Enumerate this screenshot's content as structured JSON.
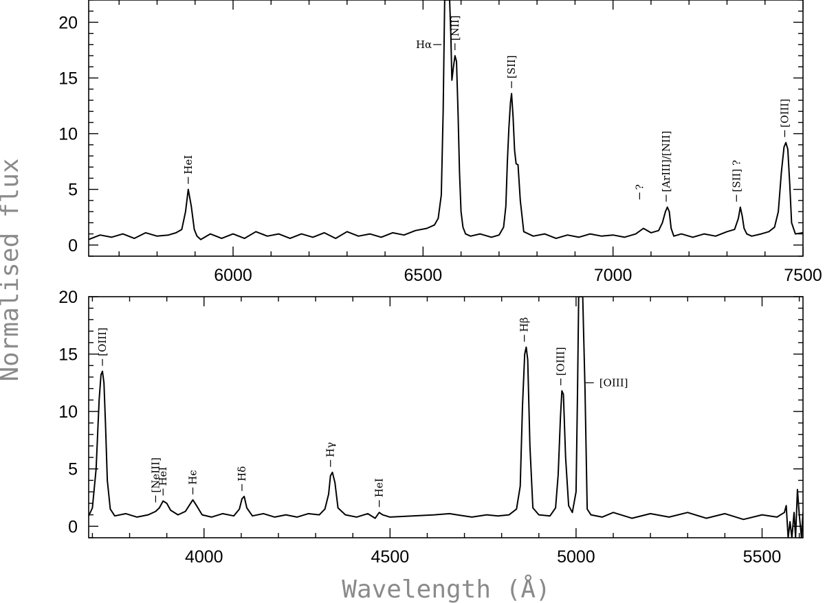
{
  "chart_data": [
    {
      "type": "line",
      "panel": "top",
      "xlabel": "",
      "ylabel": "",
      "xlim": [
        5620,
        7500
      ],
      "ylim": [
        -1,
        22
      ],
      "xticks": [
        6000,
        6500,
        7000,
        7500
      ],
      "yticks": [
        0,
        5,
        10,
        15,
        20
      ],
      "grid": false,
      "series": [
        {
          "x": [
            5620,
            5650,
            5680,
            5710,
            5740,
            5770,
            5800,
            5830,
            5850,
            5865,
            5875,
            5882,
            5890,
            5898,
            5905,
            5915,
            5940,
            5970,
            6000,
            6030,
            6060,
            6090,
            6120,
            6150,
            6180,
            6210,
            6240,
            6270,
            6300,
            6330,
            6360,
            6390,
            6420,
            6450,
            6480,
            6510,
            6530,
            6540,
            6548,
            6553,
            6557,
            6560,
            6563,
            6566,
            6570,
            6573,
            6576,
            6580,
            6584,
            6588,
            6592,
            6596,
            6600,
            6605,
            6612,
            6625,
            6650,
            6680,
            6700,
            6712,
            6718,
            6722,
            6726,
            6730,
            6733,
            6737,
            6741,
            6745,
            6750,
            6756,
            6765,
            6790,
            6820,
            6850,
            6880,
            6910,
            6940,
            6970,
            7000,
            7030,
            7060,
            7080,
            7100,
            7120,
            7130,
            7138,
            7143,
            7148,
            7153,
            7160,
            7180,
            7210,
            7240,
            7270,
            7300,
            7320,
            7330,
            7335,
            7340,
            7345,
            7352,
            7365,
            7390,
            7410,
            7425,
            7435,
            7443,
            7450,
            7455,
            7460,
            7465,
            7470,
            7480,
            7500
          ],
          "y": [
            0.5,
            0.9,
            0.7,
            1.0,
            0.6,
            1.1,
            0.8,
            0.9,
            1.1,
            1.4,
            3.0,
            5.0,
            3.5,
            1.4,
            0.8,
            0.5,
            1.0,
            0.6,
            1.0,
            0.6,
            1.2,
            0.8,
            1.0,
            0.6,
            1.0,
            0.7,
            1.1,
            0.6,
            1.2,
            0.8,
            1.0,
            0.7,
            1.1,
            0.9,
            1.3,
            1.5,
            1.8,
            2.4,
            4.5,
            12.0,
            22.0,
            22.0,
            22.0,
            22.0,
            22.0,
            19.0,
            14.8,
            16.0,
            17.0,
            16.5,
            12.0,
            6.5,
            3.0,
            1.6,
            1.0,
            0.8,
            1.0,
            0.7,
            0.9,
            1.6,
            3.5,
            7.5,
            10.5,
            12.8,
            13.6,
            11.5,
            8.5,
            7.3,
            7.2,
            4.0,
            1.2,
            0.8,
            1.0,
            0.6,
            0.9,
            0.7,
            1.0,
            0.8,
            0.9,
            0.7,
            1.0,
            1.5,
            1.1,
            1.3,
            2.0,
            3.0,
            3.4,
            3.0,
            1.5,
            0.8,
            1.0,
            0.7,
            1.0,
            0.8,
            1.2,
            1.4,
            2.4,
            3.4,
            2.6,
            1.5,
            1.0,
            0.8,
            1.0,
            1.2,
            1.6,
            3.0,
            6.5,
            8.8,
            9.2,
            8.6,
            5.5,
            2.0,
            1.0,
            1.1
          ]
        }
      ],
      "annotations": [
        {
          "text": "HeI",
          "x": 5882,
          "y": 5.0,
          "orient": "vertical"
        },
        {
          "text": "Hα",
          "x": 6563,
          "y": 18.0,
          "orient": "horizontal-left"
        },
        {
          "text": "[NII]",
          "x": 6584,
          "y": 17.0,
          "orient": "vertical"
        },
        {
          "text": "[SII]",
          "x": 6733,
          "y": 13.6,
          "orient": "vertical"
        },
        {
          "text": "?",
          "x": 7070,
          "y": 3.6,
          "orient": "vertical"
        },
        {
          "text": "[ArIII]/[NII]",
          "x": 7140,
          "y": 3.4,
          "orient": "vertical"
        },
        {
          "text": "[SII] ?",
          "x": 7325,
          "y": 3.4,
          "orient": "vertical"
        },
        {
          "text": "[OIII]",
          "x": 7452,
          "y": 9.2,
          "orient": "vertical"
        }
      ]
    },
    {
      "type": "line",
      "panel": "bottom",
      "xlabel": "Wavelength (Å)",
      "ylabel": "Normalised flux",
      "xlim": [
        3690,
        5610
      ],
      "ylim": [
        -1,
        20
      ],
      "xticks": [
        4000,
        4500,
        5000,
        5500
      ],
      "yticks": [
        0,
        5,
        10,
        15,
        20
      ],
      "grid": false,
      "series": [
        {
          "x": [
            3690,
            3700,
            3710,
            3718,
            3723,
            3727,
            3731,
            3735,
            3740,
            3748,
            3760,
            3790,
            3820,
            3850,
            3870,
            3880,
            3890,
            3900,
            3910,
            3930,
            3950,
            3960,
            3970,
            3980,
            3995,
            4020,
            4050,
            4080,
            4095,
            4102,
            4108,
            4115,
            4130,
            4160,
            4190,
            4220,
            4250,
            4280,
            4310,
            4325,
            4335,
            4340,
            4345,
            4352,
            4360,
            4380,
            4410,
            4440,
            4460,
            4471,
            4480,
            4500,
            4560,
            4620,
            4660,
            4680,
            4720,
            4760,
            4790,
            4820,
            4840,
            4850,
            4856,
            4862,
            4866,
            4870,
            4876,
            4884,
            4900,
            4930,
            4945,
            4952,
            4958,
            4962,
            4966,
            4972,
            4980,
            4990,
            5000,
            5004,
            5007,
            5012,
            5018,
            5024,
            5030,
            5040,
            5070,
            5100,
            5150,
            5200,
            5250,
            5300,
            5350,
            5400,
            5450,
            5500,
            5540,
            5560,
            5565,
            5570,
            5575,
            5580,
            5586,
            5590,
            5595,
            5600,
            5606,
            5610
          ],
          "y": [
            0.9,
            1.6,
            5.0,
            11.0,
            13.2,
            13.5,
            12.5,
            9.0,
            4.0,
            1.5,
            0.9,
            1.1,
            0.8,
            1.0,
            1.3,
            1.6,
            2.2,
            2.0,
            1.4,
            1.0,
            1.3,
            1.8,
            2.3,
            1.8,
            1.0,
            0.8,
            1.1,
            0.9,
            1.5,
            2.4,
            2.6,
            1.6,
            0.9,
            1.1,
            0.8,
            1.0,
            0.8,
            1.1,
            1.0,
            1.5,
            2.8,
            4.4,
            4.7,
            3.8,
            1.6,
            1.0,
            0.8,
            1.1,
            0.7,
            1.2,
            1.0,
            0.8,
            0.9,
            1.0,
            1.1,
            1.0,
            0.8,
            1.0,
            0.9,
            1.0,
            1.5,
            3.5,
            10.5,
            15.0,
            15.6,
            14.5,
            7.0,
            1.6,
            1.0,
            0.9,
            1.6,
            4.5,
            9.5,
            11.8,
            11.5,
            6.0,
            1.8,
            1.2,
            3.0,
            12.0,
            20.0,
            20.0,
            20.0,
            12.0,
            1.5,
            1.0,
            0.8,
            1.2,
            0.7,
            1.1,
            0.8,
            1.2,
            0.7,
            1.1,
            0.6,
            1.0,
            0.8,
            1.2,
            1.8,
            -1.0,
            0.4,
            -1.0,
            1.2,
            -1.0,
            3.2,
            1.0,
            -1.0,
            1.2
          ]
        }
      ],
      "annotations": [
        {
          "text": "[OIII]",
          "x": 3727,
          "y": 13.5,
          "orient": "vertical"
        },
        {
          "text": "[NeIII]",
          "x": 3870,
          "y": 1.6,
          "orient": "vertical"
        },
        {
          "text": "HeI",
          "x": 3890,
          "y": 2.2,
          "orient": "vertical"
        },
        {
          "text": "Hϵ",
          "x": 3970,
          "y": 2.3,
          "orient": "vertical"
        },
        {
          "text": "Hδ",
          "x": 4102,
          "y": 2.6,
          "orient": "vertical"
        },
        {
          "text": "Hγ",
          "x": 4340,
          "y": 4.7,
          "orient": "vertical"
        },
        {
          "text": "HeI",
          "x": 4471,
          "y": 1.2,
          "orient": "vertical"
        },
        {
          "text": "Hβ",
          "x": 4861,
          "y": 15.6,
          "orient": "vertical"
        },
        {
          "text": "[OIII]",
          "x": 4959,
          "y": 11.8,
          "orient": "vertical"
        },
        {
          "text": "[OIII]",
          "x": 5007,
          "y": 12.5,
          "orient": "horizontal-right"
        }
      ]
    }
  ]
}
